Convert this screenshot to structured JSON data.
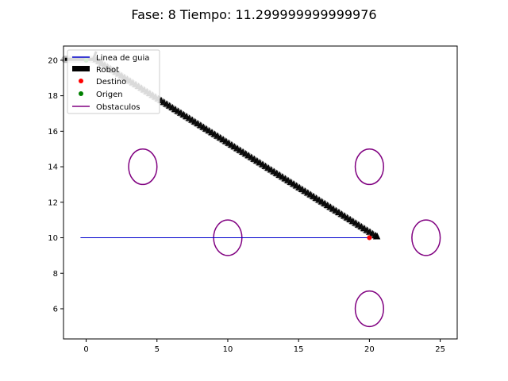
{
  "chart_data": {
    "type": "line",
    "title": "Fase: 8 Tiempo: 11.299999999999976",
    "xlabel": "",
    "ylabel": "",
    "xlim": [
      -1.6,
      26.2
    ],
    "ylim": [
      4.3,
      20.8
    ],
    "x_ticks": [
      0,
      5,
      10,
      15,
      20,
      25
    ],
    "y_ticks": [
      6,
      8,
      10,
      12,
      14,
      16,
      18,
      20
    ],
    "grid": false,
    "legend_position": "upper-left",
    "guide_line": {
      "name": "Linea de guia",
      "color": "#0000cc",
      "x": [
        -0.4,
        20
      ],
      "y": [
        10,
        10
      ]
    },
    "robot": {
      "name": "Robot",
      "color": "#000000",
      "trail_color": "#bdbdbd",
      "path_x": [
        -1.5,
        0.6,
        20.4
      ],
      "path_y": [
        20.05,
        20.05,
        10.1
      ]
    },
    "destination": {
      "name": "Destino",
      "color": "#ff0000",
      "x": 20,
      "y": 10
    },
    "origin": {
      "name": "Origen",
      "color": "#008000",
      "x": 0,
      "y": 20
    },
    "obstacles": {
      "name": "Obstaculos",
      "color": "#800080",
      "radius": 1,
      "centers": [
        [
          4,
          14
        ],
        [
          10,
          10
        ],
        [
          20,
          14
        ],
        [
          24,
          10
        ],
        [
          20,
          6
        ]
      ]
    }
  }
}
